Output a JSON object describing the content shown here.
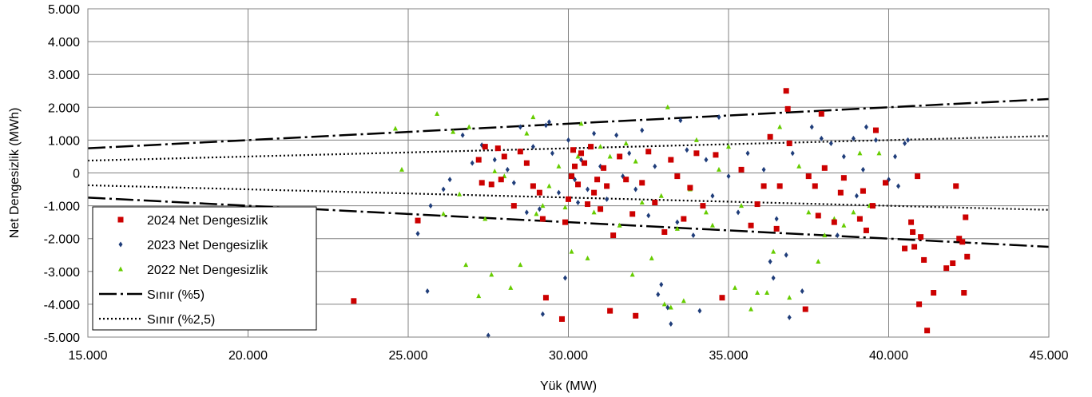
{
  "chart_data": {
    "type": "scatter",
    "title": "",
    "xlabel": "Yük (MW)",
    "ylabel": "Net Dengesizlik (MWh)",
    "xlim": [
      15000,
      45000
    ],
    "ylim": [
      -5000,
      5000
    ],
    "x_ticks": [
      15000,
      20000,
      25000,
      30000,
      35000,
      40000,
      45000
    ],
    "x_tick_labels": [
      "15.000",
      "20.000",
      "25.000",
      "30.000",
      "35.000",
      "40.000",
      "45.000"
    ],
    "y_ticks": [
      5000,
      4000,
      3000,
      2000,
      1000,
      0,
      -1000,
      -2000,
      -3000,
      -4000,
      -5000
    ],
    "y_tick_labels": [
      "5.000",
      "4.000",
      "3.000",
      "2.000",
      "1.000",
      "0",
      "-1.000",
      "-2.000",
      "-3.000",
      "-4.000",
      "-5.000"
    ],
    "grid": true,
    "legend_position": "bottom-left",
    "series": [
      {
        "name": "2024 Net Dengesizlik",
        "marker": "square",
        "color": "#cc0000",
        "points": [
          [
            23300,
            -3900
          ],
          [
            25300,
            -1450
          ],
          [
            27200,
            400
          ],
          [
            27300,
            -300
          ],
          [
            27400,
            800
          ],
          [
            27600,
            -350
          ],
          [
            27800,
            750
          ],
          [
            27900,
            -200
          ],
          [
            28000,
            500
          ],
          [
            28300,
            -1000
          ],
          [
            28500,
            650
          ],
          [
            28700,
            300
          ],
          [
            28900,
            -400
          ],
          [
            29100,
            -600
          ],
          [
            29200,
            -1400
          ],
          [
            29300,
            -3800
          ],
          [
            29800,
            -4450
          ],
          [
            29900,
            -1500
          ],
          [
            30000,
            -800
          ],
          [
            30100,
            -100
          ],
          [
            30150,
            700
          ],
          [
            30200,
            200
          ],
          [
            30300,
            -350
          ],
          [
            30400,
            600
          ],
          [
            30500,
            300
          ],
          [
            30600,
            -950
          ],
          [
            30700,
            800
          ],
          [
            30800,
            -600
          ],
          [
            30900,
            -200
          ],
          [
            31000,
            -1100
          ],
          [
            31100,
            150
          ],
          [
            31200,
            -400
          ],
          [
            31300,
            -4200
          ],
          [
            31400,
            -1900
          ],
          [
            31600,
            500
          ],
          [
            31800,
            -200
          ],
          [
            32000,
            -1250
          ],
          [
            32100,
            -4350
          ],
          [
            32300,
            -300
          ],
          [
            32500,
            650
          ],
          [
            32700,
            -900
          ],
          [
            33000,
            -1800
          ],
          [
            33200,
            400
          ],
          [
            33400,
            -100
          ],
          [
            33600,
            -1400
          ],
          [
            33800,
            -450
          ],
          [
            34000,
            600
          ],
          [
            34200,
            -1000
          ],
          [
            34600,
            550
          ],
          [
            34800,
            -3800
          ],
          [
            35400,
            100
          ],
          [
            35700,
            -1600
          ],
          [
            35900,
            -950
          ],
          [
            36100,
            -400
          ],
          [
            36300,
            1100
          ],
          [
            36500,
            -1700
          ],
          [
            36600,
            -400
          ],
          [
            36800,
            2500
          ],
          [
            36850,
            1950
          ],
          [
            36900,
            900
          ],
          [
            37400,
            -4150
          ],
          [
            37500,
            -100
          ],
          [
            37700,
            -400
          ],
          [
            37800,
            -1300
          ],
          [
            37900,
            1800
          ],
          [
            38000,
            150
          ],
          [
            38300,
            -1500
          ],
          [
            38500,
            -600
          ],
          [
            38600,
            -150
          ],
          [
            39100,
            -1400
          ],
          [
            39200,
            -550
          ],
          [
            39300,
            -1750
          ],
          [
            39500,
            -1000
          ],
          [
            39600,
            1300
          ],
          [
            39900,
            -300
          ],
          [
            40500,
            -2300
          ],
          [
            40700,
            -1500
          ],
          [
            40750,
            -1800
          ],
          [
            40800,
            -2250
          ],
          [
            40900,
            -100
          ],
          [
            41000,
            -1950
          ],
          [
            41100,
            -2650
          ],
          [
            41200,
            -4800
          ],
          [
            41400,
            -3650
          ],
          [
            41800,
            -2900
          ],
          [
            42000,
            -2750
          ],
          [
            42100,
            -400
          ],
          [
            42200,
            -2000
          ],
          [
            42300,
            -2100
          ],
          [
            42350,
            -3650
          ],
          [
            42400,
            -1350
          ],
          [
            42450,
            -2550
          ],
          [
            40950,
            -4000
          ]
        ]
      },
      {
        "name": "2023 Net Dengesizlik",
        "marker": "diamond",
        "color": "#1f3d7a",
        "points": [
          [
            25300,
            -1850
          ],
          [
            25600,
            -3600
          ],
          [
            25700,
            -1000
          ],
          [
            26100,
            -500
          ],
          [
            26300,
            -200
          ],
          [
            26700,
            1150
          ],
          [
            27000,
            300
          ],
          [
            27300,
            850
          ],
          [
            27500,
            -4950
          ],
          [
            27700,
            400
          ],
          [
            28100,
            100
          ],
          [
            28300,
            -300
          ],
          [
            28500,
            1400
          ],
          [
            28700,
            -1200
          ],
          [
            28900,
            800
          ],
          [
            29100,
            -1100
          ],
          [
            29200,
            -4300
          ],
          [
            29300,
            1450
          ],
          [
            29400,
            1550
          ],
          [
            29500,
            600
          ],
          [
            29700,
            -600
          ],
          [
            29900,
            -3200
          ],
          [
            30000,
            1000
          ],
          [
            30200,
            -200
          ],
          [
            30300,
            -900
          ],
          [
            30400,
            400
          ],
          [
            30600,
            -500
          ],
          [
            30800,
            1200
          ],
          [
            31000,
            200
          ],
          [
            31200,
            -800
          ],
          [
            31500,
            1150
          ],
          [
            31700,
            -100
          ],
          [
            31900,
            600
          ],
          [
            32100,
            -500
          ],
          [
            32300,
            1300
          ],
          [
            32500,
            -1300
          ],
          [
            32700,
            200
          ],
          [
            32800,
            -3700
          ],
          [
            32900,
            -3400
          ],
          [
            33100,
            -4100
          ],
          [
            33200,
            -4600
          ],
          [
            33400,
            -1500
          ],
          [
            33500,
            1600
          ],
          [
            33700,
            700
          ],
          [
            33900,
            -1900
          ],
          [
            34100,
            -4200
          ],
          [
            34300,
            400
          ],
          [
            34500,
            -700
          ],
          [
            34700,
            1700
          ],
          [
            35000,
            -100
          ],
          [
            35300,
            -1200
          ],
          [
            35600,
            600
          ],
          [
            36100,
            100
          ],
          [
            36300,
            -2700
          ],
          [
            36400,
            -3200
          ],
          [
            36500,
            -1400
          ],
          [
            36800,
            -2500
          ],
          [
            36900,
            -4400
          ],
          [
            37000,
            600
          ],
          [
            37300,
            -3600
          ],
          [
            37600,
            1400
          ],
          [
            37900,
            1050
          ],
          [
            38200,
            900
          ],
          [
            38400,
            -1900
          ],
          [
            38600,
            500
          ],
          [
            38900,
            1050
          ],
          [
            39000,
            -700
          ],
          [
            39200,
            100
          ],
          [
            39300,
            1400
          ],
          [
            39600,
            1000
          ],
          [
            40000,
            -200
          ],
          [
            40200,
            500
          ],
          [
            40300,
            -400
          ],
          [
            40500,
            900
          ],
          [
            40600,
            1000
          ]
        ]
      },
      {
        "name": "2022 Net Dengesizlik",
        "marker": "triangle",
        "color": "#66cc00",
        "points": [
          [
            24600,
            1350
          ],
          [
            24800,
            100
          ],
          [
            25900,
            1800
          ],
          [
            26100,
            -1250
          ],
          [
            26400,
            1250
          ],
          [
            26600,
            -650
          ],
          [
            26800,
            -2800
          ],
          [
            26900,
            1400
          ],
          [
            27200,
            -3750
          ],
          [
            27400,
            -1400
          ],
          [
            27600,
            -3100
          ],
          [
            27700,
            50
          ],
          [
            28000,
            -100
          ],
          [
            28200,
            -3500
          ],
          [
            28500,
            -2800
          ],
          [
            28700,
            1200
          ],
          [
            28900,
            1700
          ],
          [
            29000,
            -1250
          ],
          [
            29200,
            -1000
          ],
          [
            29400,
            -400
          ],
          [
            29700,
            200
          ],
          [
            29900,
            -1050
          ],
          [
            30100,
            -2400
          ],
          [
            30300,
            500
          ],
          [
            30400,
            1500
          ],
          [
            30600,
            -2600
          ],
          [
            30800,
            -1200
          ],
          [
            31000,
            800
          ],
          [
            31300,
            500
          ],
          [
            31600,
            -1600
          ],
          [
            31800,
            900
          ],
          [
            32000,
            -3100
          ],
          [
            32100,
            350
          ],
          [
            32300,
            -900
          ],
          [
            32600,
            -2600
          ],
          [
            32900,
            -700
          ],
          [
            33000,
            -4000
          ],
          [
            33100,
            2000
          ],
          [
            33200,
            -4100
          ],
          [
            33400,
            -1700
          ],
          [
            33600,
            -3900
          ],
          [
            33800,
            -500
          ],
          [
            34000,
            1000
          ],
          [
            34300,
            -1200
          ],
          [
            34500,
            -1600
          ],
          [
            34700,
            100
          ],
          [
            35000,
            800
          ],
          [
            35200,
            -3500
          ],
          [
            35400,
            -1000
          ],
          [
            35700,
            -4150
          ],
          [
            35900,
            -3650
          ],
          [
            36200,
            -3650
          ],
          [
            36400,
            -2400
          ],
          [
            36600,
            1400
          ],
          [
            36900,
            -3800
          ],
          [
            37200,
            200
          ],
          [
            37500,
            -1200
          ],
          [
            37800,
            -2700
          ],
          [
            38000,
            -1900
          ],
          [
            38300,
            -1400
          ],
          [
            38600,
            -1600
          ],
          [
            38900,
            -1200
          ],
          [
            39100,
            600
          ],
          [
            39400,
            -1000
          ],
          [
            39700,
            600
          ]
        ]
      },
      {
        "name": "Sınır (%5)",
        "style": "long-dash-dot",
        "color": "#000000",
        "upper": [
          [
            15000,
            750
          ],
          [
            45000,
            2250
          ]
        ],
        "lower": [
          [
            15000,
            -750
          ],
          [
            45000,
            -2250
          ]
        ]
      },
      {
        "name": "Sınır (%2,5)",
        "style": "dotted",
        "color": "#000000",
        "upper": [
          [
            15000,
            375
          ],
          [
            45000,
            1125
          ]
        ],
        "lower": [
          [
            15000,
            -375
          ],
          [
            45000,
            -1125
          ]
        ]
      }
    ]
  }
}
